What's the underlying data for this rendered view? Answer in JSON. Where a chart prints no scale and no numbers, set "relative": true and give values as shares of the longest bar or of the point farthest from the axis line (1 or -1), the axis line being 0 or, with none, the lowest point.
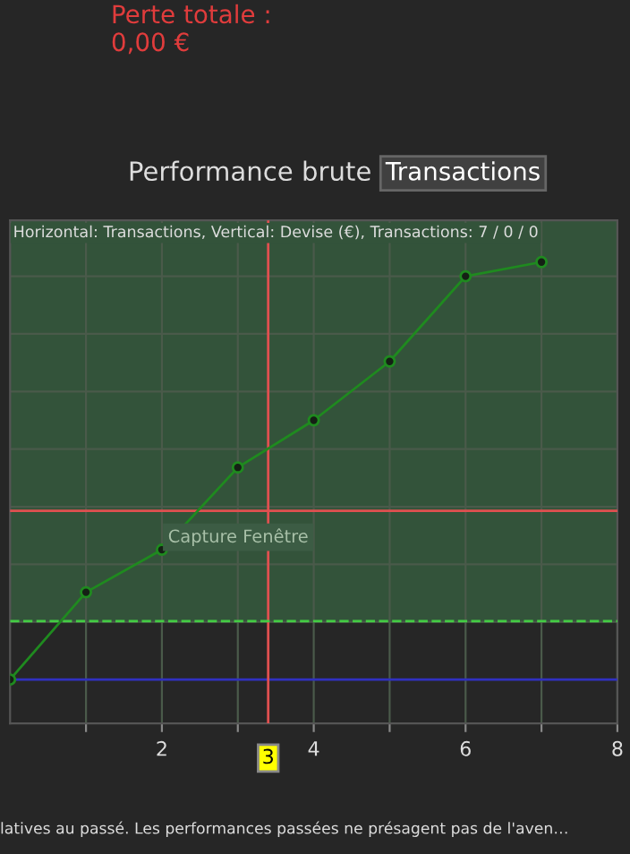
{
  "chart_data": {
    "type": "line",
    "title": "Horizontal: Transactions, Vertical: Devise (€), Transactions: 7 / 0 / 0",
    "x": [
      0,
      1,
      2,
      3,
      4,
      5,
      6,
      7
    ],
    "series": [
      {
        "color": "#1f8a1f",
        "values": [
          0,
          0.209,
          0.311,
          0.508,
          0.621,
          0.762,
          0.966,
          1
        ]
      }
    ],
    "relative": true,
    "xlim": [
      0,
      8
    ],
    "xticks": [
      {
        "value": 1,
        "label": null
      },
      2,
      {
        "value": 3,
        "label": null
      },
      4,
      {
        "value": 5,
        "label": null
      },
      6,
      {
        "value": 7,
        "label": null
      },
      8
    ],
    "tick_labels": "x",
    "grid": true,
    "marker": "circle",
    "line_style": "solid",
    "ref_lines": [
      {
        "axis": "x",
        "value": 3.4,
        "label": "3",
        "color": "#e05050"
      },
      {
        "axis": "y",
        "value": 0.404,
        "color": "#e05050"
      },
      {
        "axis": "y",
        "value": 0.14,
        "color": "#44cc44",
        "line_style": "dashed"
      }
    ],
    "bands": [
      {
        "axis": "y",
        "from": 0.14,
        "to": 1.1,
        "color": "#33533a"
      }
    ],
    "annotations": [
      "Perte totale :\n0,00 €",
      "Performance brute",
      "Transactions",
      "Capture Fenêtre",
      "latives au passé. Les performances passées ne présagent pas de l'aven…"
    ]
  }
}
